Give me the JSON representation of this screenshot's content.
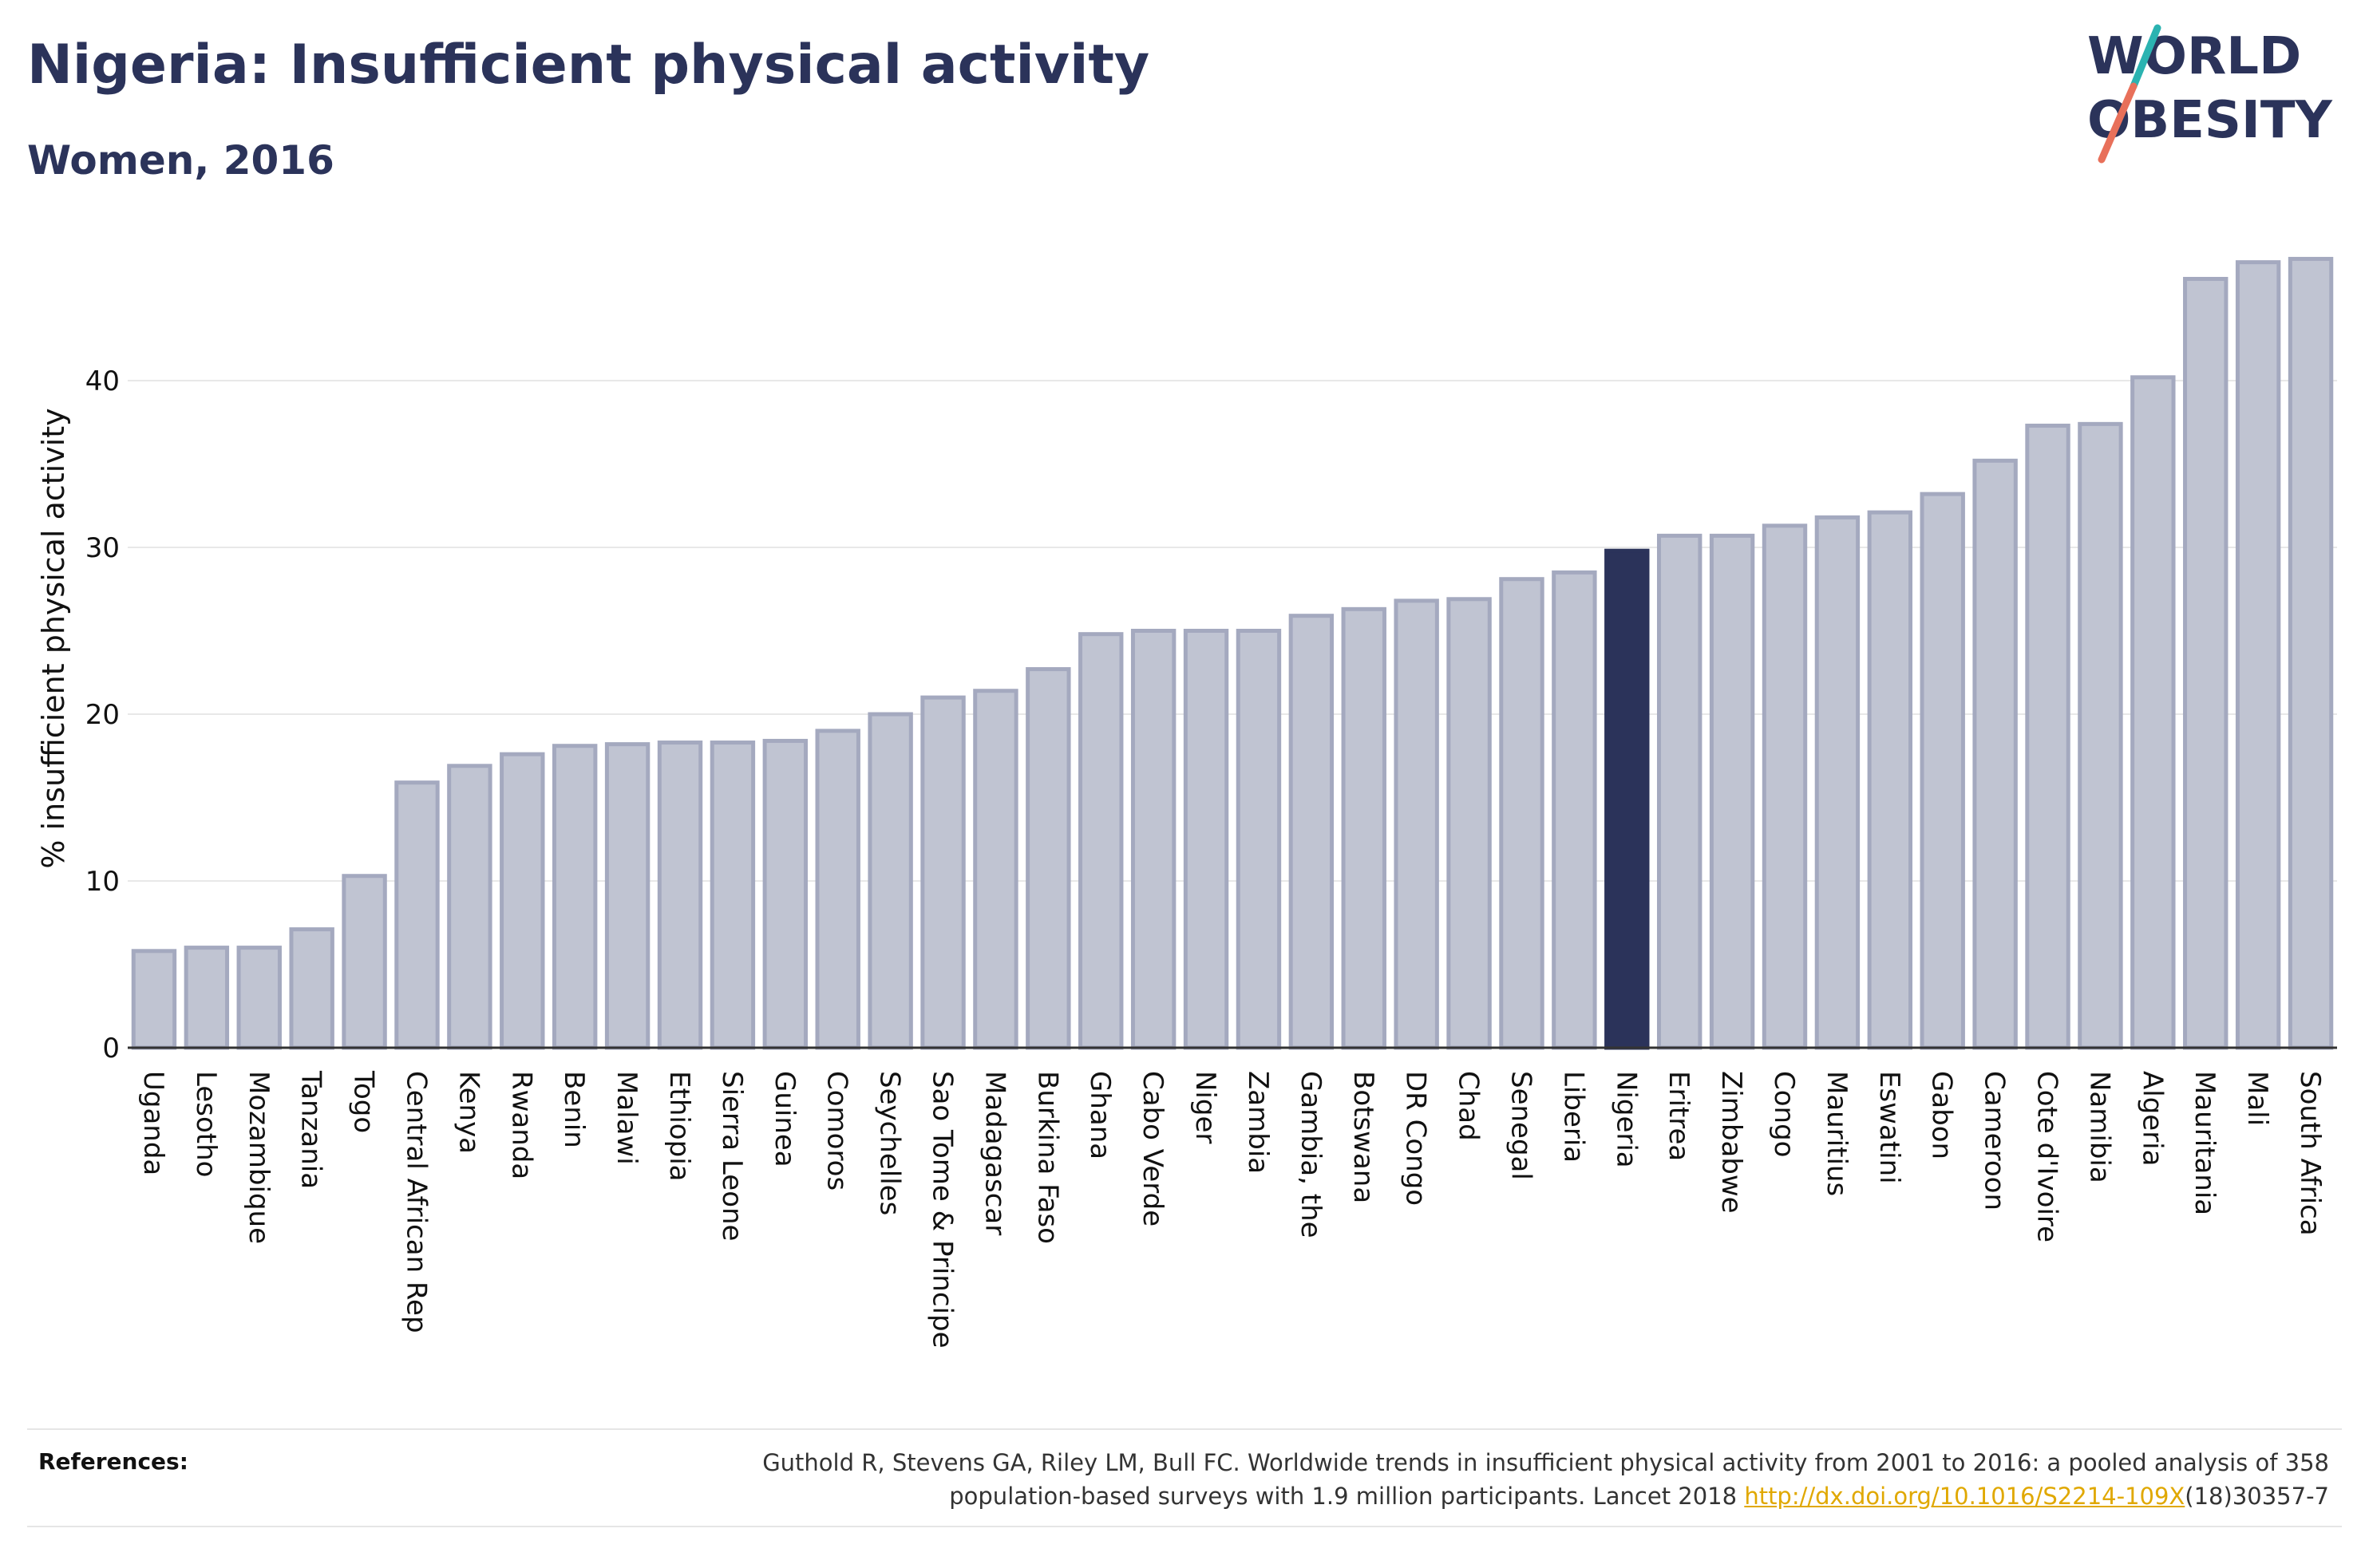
{
  "header": {
    "title": "Nigeria: Insufficient physical activity",
    "subtitle": "Women, 2016"
  },
  "logo": {
    "line1": "WORLD",
    "line2": "OBESITY",
    "colors": {
      "text": "#2b335a",
      "slash_top": "#2bb3b1",
      "slash_bottom": "#e8705a"
    }
  },
  "chart_data": {
    "type": "bar",
    "ylabel": "% insufficient physical activity",
    "ylim": [
      0,
      48
    ],
    "yticks": [
      0,
      10,
      20,
      30,
      40
    ],
    "grid": true,
    "highlight": "Nigeria",
    "colors": {
      "bar": "#c0c4d2",
      "bar_border": "#a4a9bf",
      "highlight": "#2b335a"
    },
    "categories": [
      "Uganda",
      "Lesotho",
      "Mozambique",
      "Tanzania",
      "Togo",
      "Central African Rep",
      "Kenya",
      "Rwanda",
      "Benin",
      "Malawi",
      "Ethiopia",
      "Sierra Leone",
      "Guinea",
      "Comoros",
      "Seychelles",
      "Sao Tome & Principe",
      "Madagascar",
      "Burkina Faso",
      "Ghana",
      "Cabo Verde",
      "Niger",
      "Zambia",
      "Gambia, the",
      "Botswana",
      "DR Congo",
      "Chad",
      "Senegal",
      "Liberia",
      "Nigeria",
      "Eritrea",
      "Zimbabwe",
      "Congo",
      "Mauritius",
      "Eswatini",
      "Gabon",
      "Cameroon",
      "Cote d'Ivoire",
      "Namibia",
      "Algeria",
      "Mauritania",
      "Mali",
      "South Africa"
    ],
    "values": [
      5.8,
      6.0,
      6.0,
      7.1,
      10.3,
      15.9,
      16.9,
      17.6,
      18.1,
      18.2,
      18.3,
      18.3,
      18.4,
      19.0,
      20.0,
      21.0,
      21.4,
      22.7,
      24.8,
      25.0,
      25.0,
      25.0,
      25.9,
      26.3,
      26.8,
      26.9,
      28.1,
      28.5,
      29.8,
      30.7,
      30.7,
      31.3,
      31.8,
      32.1,
      33.2,
      35.2,
      37.3,
      37.4,
      40.2,
      46.1,
      47.1,
      47.3
    ]
  },
  "references": {
    "label": "References:",
    "line1": "Guthold R, Stevens GA, Riley LM, Bull FC. Worldwide trends in insufficient physical activity from 2001 to 2016: a pooled analysis of 358",
    "line2_before": "population-based surveys with 1.9 million participants. Lancet 2018 ",
    "link": "http://dx.doi.org/10.1016/S2214-109X",
    "line2_after": "(18)30357-7"
  }
}
